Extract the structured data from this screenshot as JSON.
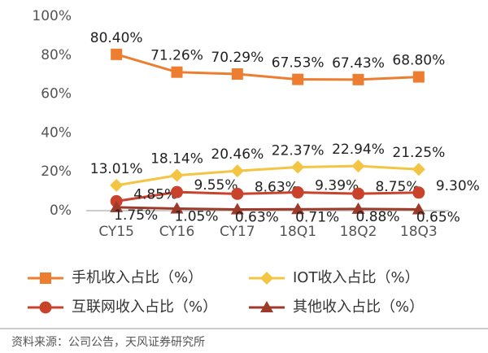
{
  "chart_data": {
    "type": "line",
    "categories": [
      "CY15",
      "CY16",
      "CY17",
      "18Q1",
      "18Q2",
      "18Q3"
    ],
    "ylim": [
      0,
      100
    ],
    "yticks": [
      {
        "value": 0,
        "label": "0%"
      },
      {
        "value": 20,
        "label": "20%"
      },
      {
        "value": 40,
        "label": "40%"
      },
      {
        "value": 60,
        "label": "60%"
      },
      {
        "value": 80,
        "label": "80%"
      },
      {
        "value": 100,
        "label": "100%"
      }
    ],
    "series": [
      {
        "name": "手机收入占比（%）",
        "color": "#ED7D31",
        "marker": "square",
        "values": [
          80.4,
          71.26,
          70.29,
          67.53,
          67.43,
          68.8
        ],
        "value_labels": [
          "80.40%",
          "71.26%",
          "70.29%",
          "67.53%",
          "67.43%",
          "68.80%"
        ]
      },
      {
        "name": "IOT收入占比（%）",
        "color": "#F4C443",
        "marker": "diamond",
        "values": [
          13.01,
          18.14,
          20.46,
          22.37,
          22.94,
          21.25
        ],
        "value_labels": [
          "13.01%",
          "18.14%",
          "20.46%",
          "22.37%",
          "22.94%",
          "21.25%"
        ]
      },
      {
        "name": "互联网收入占比（%）",
        "color": "#C9432C",
        "marker": "circle",
        "values": [
          4.85,
          9.55,
          8.63,
          9.39,
          8.75,
          9.3
        ],
        "value_labels": [
          "4.85%",
          "9.55%",
          "8.63%",
          "9.39%",
          "8.75%",
          "9.30%"
        ]
      },
      {
        "name": "其他收入占比（%）",
        "color": "#9E3A2A",
        "marker": "triangle",
        "values": [
          1.75,
          1.05,
          0.63,
          0.71,
          0.88,
          0.65
        ],
        "value_labels": [
          "1.75%",
          "1.05%",
          "0.63%",
          "0.71%",
          "0.88%",
          "0.65%"
        ]
      }
    ],
    "source": "资料来源：公司公告，天风证券研究所"
  }
}
